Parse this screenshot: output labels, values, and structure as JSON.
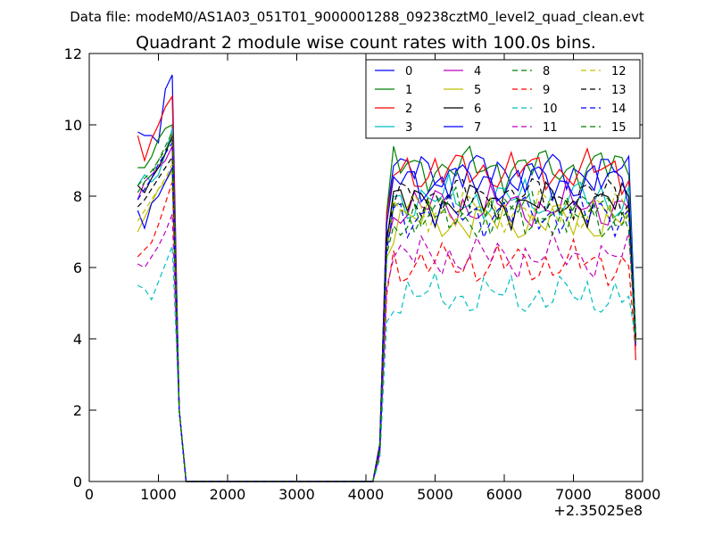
{
  "chart_data": {
    "type": "line",
    "suptitle": "Data file: modeM0/AS1A03_051T01_9000001288_09238cztM0_level2_quad_clean.evt",
    "title": "Quadrant 2 module wise count rates with 100.0s bins.",
    "xlabel": "",
    "ylabel": "",
    "x_offset_label": "+2.35025e8",
    "xlim": [
      0,
      8000
    ],
    "ylim": [
      0,
      12
    ],
    "xticks": [
      "0",
      "1000",
      "2000",
      "3000",
      "4000",
      "5000",
      "6000",
      "7000",
      "8000"
    ],
    "yticks": [
      "0",
      "2",
      "4",
      "6",
      "8",
      "10",
      "12"
    ],
    "grid": false,
    "legend_position": "upper-right",
    "legend_columns": 4,
    "x_segments": [
      {
        "start": 700,
        "end": 1500,
        "step": 100
      },
      {
        "start": 1500,
        "end": 4100,
        "step": 100
      },
      {
        "start": 4100,
        "end": 7900,
        "step": 100
      }
    ],
    "series": [
      {
        "name": "0",
        "color": "#0000ff",
        "style": "solid",
        "plateau": [
          9.8,
          9.7,
          9.7,
          9.5,
          11.0,
          11.4,
          2.0,
          0.0
        ],
        "active": 8.7,
        "final": 4.0
      },
      {
        "name": "1",
        "color": "#008000",
        "style": "solid",
        "plateau": [
          8.8,
          8.8,
          9.1,
          9.6,
          9.9,
          10.0,
          2.0,
          0.0
        ],
        "active": 8.8,
        "final": 4.0
      },
      {
        "name": "2",
        "color": "#ff0000",
        "style": "solid",
        "plateau": [
          9.7,
          9.0,
          9.6,
          10.0,
          10.5,
          10.8,
          2.0,
          0.0
        ],
        "active": 8.7,
        "final": 3.4
      },
      {
        "name": "3",
        "color": "#00bfbf",
        "style": "solid",
        "plateau": [
          8.3,
          8.6,
          8.4,
          8.6,
          9.2,
          9.9,
          2.0,
          0.0
        ],
        "active": 7.9,
        "final": 4.2
      },
      {
        "name": "4",
        "color": "#bf00bf",
        "style": "solid",
        "plateau": [
          7.9,
          8.4,
          8.6,
          8.8,
          9.0,
          9.4,
          2.0,
          0.0
        ],
        "active": 7.7,
        "final": 4.0
      },
      {
        "name": "5",
        "color": "#bfbf00",
        "style": "solid",
        "plateau": [
          7.0,
          7.4,
          7.8,
          8.2,
          8.4,
          8.7,
          2.0,
          0.0
        ],
        "active": 7.3,
        "final": 4.1
      },
      {
        "name": "6",
        "color": "#000000",
        "style": "solid",
        "plateau": [
          8.3,
          8.1,
          8.5,
          8.8,
          9.2,
          9.7,
          2.0,
          0.0
        ],
        "active": 7.8,
        "final": 4.0
      },
      {
        "name": "7",
        "color": "#0000ff",
        "style": "solid",
        "plateau": [
          7.6,
          7.1,
          7.8,
          8.0,
          8.4,
          8.8,
          2.0,
          0.0
        ],
        "active": 8.4,
        "final": 3.8
      },
      {
        "name": "8",
        "color": "#008000",
        "style": "dashed",
        "plateau": [
          8.3,
          8.5,
          8.7,
          9.0,
          9.3,
          9.6,
          2.0,
          0.0
        ],
        "active": 7.6,
        "final": 3.9
      },
      {
        "name": "9",
        "color": "#ff0000",
        "style": "dashed",
        "plateau": [
          6.3,
          6.5,
          6.7,
          7.2,
          7.8,
          8.4,
          2.0,
          0.0
        ],
        "active": 6.1,
        "final": 3.6
      },
      {
        "name": "10",
        "color": "#00bfbf",
        "style": "dashed",
        "plateau": [
          5.5,
          5.4,
          5.1,
          5.6,
          6.1,
          6.6,
          2.0,
          0.0
        ],
        "active": 5.2,
        "final": 4.0
      },
      {
        "name": "11",
        "color": "#bf00bf",
        "style": "dashed",
        "plateau": [
          6.1,
          6.0,
          6.3,
          6.6,
          7.0,
          7.5,
          2.0,
          0.0
        ],
        "active": 6.3,
        "final": 4.0
      },
      {
        "name": "12",
        "color": "#bfbf00",
        "style": "dashed",
        "plateau": [
          7.3,
          7.6,
          7.9,
          8.2,
          8.5,
          8.9,
          2.0,
          0.0
        ],
        "active": 7.6,
        "final": 4.0
      },
      {
        "name": "13",
        "color": "#000000",
        "style": "dashed",
        "plateau": [
          7.7,
          7.9,
          8.2,
          8.5,
          8.8,
          9.1,
          2.0,
          0.0
        ],
        "active": 8.0,
        "final": 4.0
      },
      {
        "name": "14",
        "color": "#0000ff",
        "style": "dashed",
        "plateau": [
          7.9,
          8.2,
          8.5,
          8.9,
          9.2,
          9.5,
          2.0,
          0.0
        ],
        "active": 7.5,
        "final": 3.8
      },
      {
        "name": "15",
        "color": "#008000",
        "style": "dashed",
        "plateau": [
          8.1,
          8.4,
          8.6,
          9.0,
          9.4,
          9.8,
          2.0,
          0.0
        ],
        "active": 7.4,
        "final": 3.9
      }
    ],
    "rise": {
      "x": [
        4100,
        4200,
        4300
      ],
      "fraction": [
        0.0,
        0.12,
        0.86
      ]
    }
  }
}
